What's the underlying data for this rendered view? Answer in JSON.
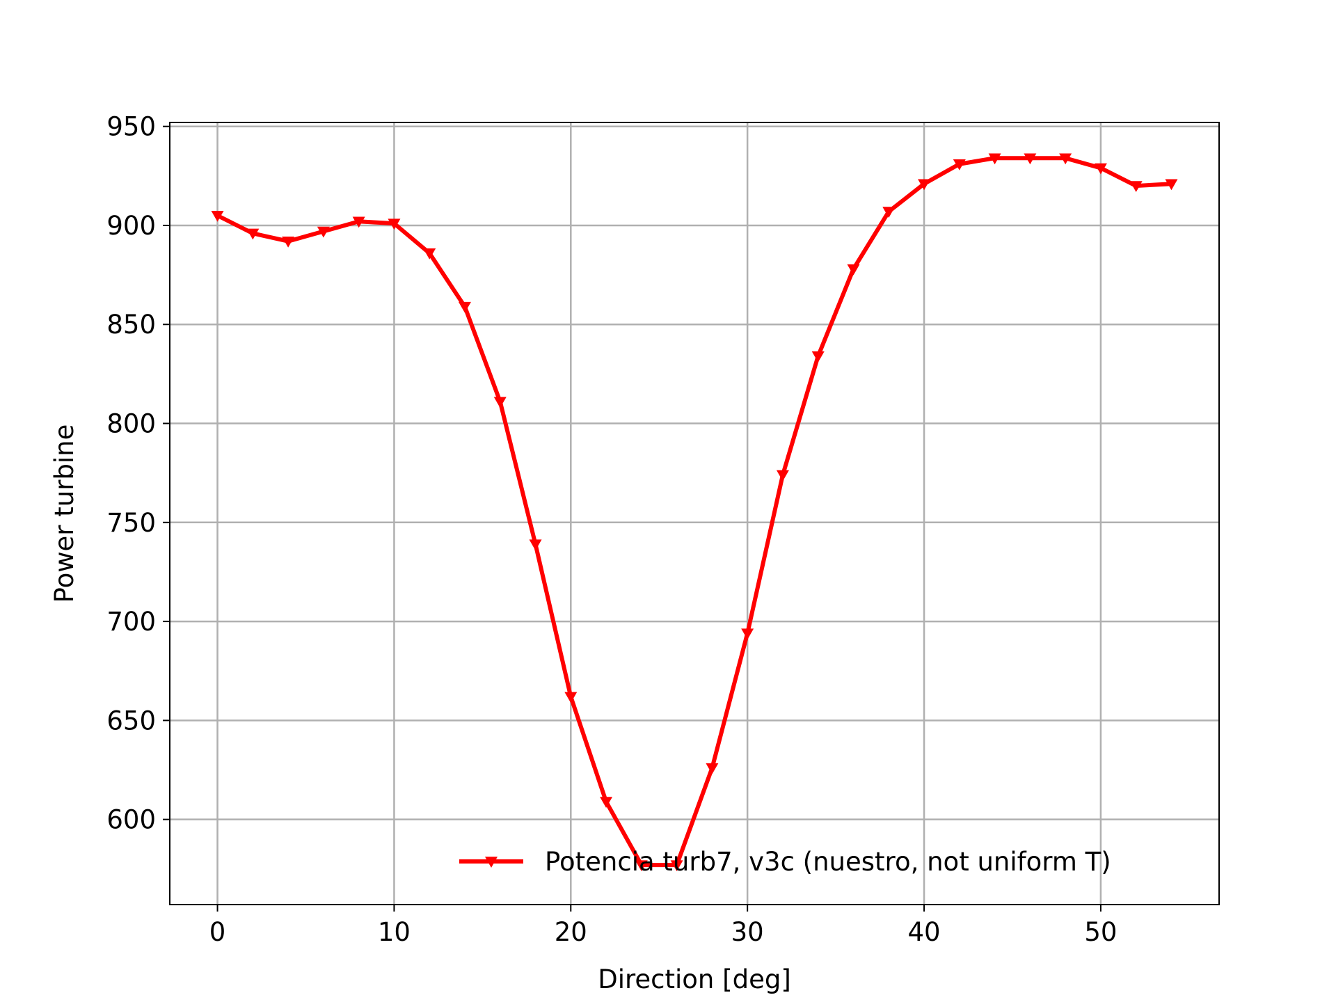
{
  "chart_data": {
    "type": "line",
    "title": "",
    "xlabel": "Direction [deg]",
    "ylabel": "Power turbine",
    "xlim": [
      -2.7,
      56.7
    ],
    "ylim": [
      557,
      952
    ],
    "xticks": [
      0,
      10,
      20,
      30,
      40,
      50
    ],
    "yticks": [
      600,
      650,
      700,
      750,
      800,
      850,
      900,
      950
    ],
    "grid": true,
    "legend_position": "lower right",
    "series": [
      {
        "name": "Potencia turb7, v3c (nuestro, not uniform T)",
        "color": "#ff0000",
        "marker": "triangle-down",
        "x": [
          0,
          2,
          4,
          6,
          8,
          10,
          12,
          14,
          16,
          18,
          20,
          22,
          24,
          26,
          28,
          30,
          32,
          34,
          36,
          38,
          40,
          42,
          44,
          46,
          48,
          50,
          52,
          54
        ],
        "y": [
          905,
          896,
          892,
          897,
          902,
          901,
          886,
          859,
          811,
          739,
          662,
          609,
          577,
          577,
          626,
          694,
          774,
          834,
          878,
          907,
          921,
          931,
          934,
          934,
          934,
          929,
          920,
          921
        ]
      }
    ]
  }
}
